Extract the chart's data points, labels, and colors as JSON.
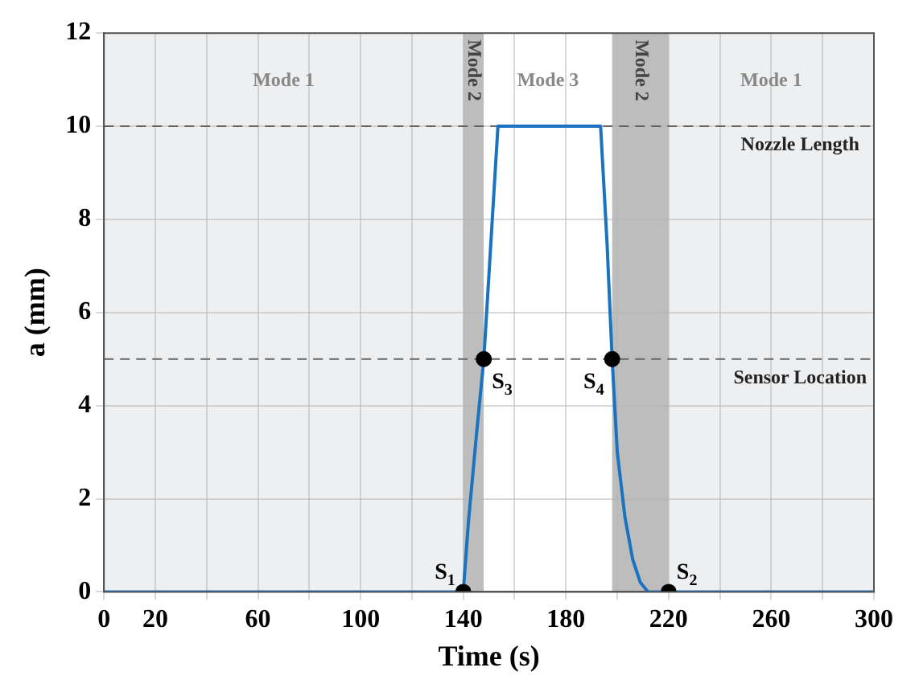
{
  "chart_data": {
    "type": "line",
    "xlabel": "Time (s)",
    "ylabel": "a (mm)",
    "xlim": [
      0,
      300
    ],
    "xticks": [
      0,
      20,
      {
        "value": 40,
        "label": null
      },
      60,
      {
        "value": 80,
        "label": null
      },
      100,
      {
        "value": 120,
        "label": null
      },
      140,
      {
        "value": 160,
        "label": null
      },
      180,
      {
        "value": 200,
        "label": null
      },
      220,
      {
        "value": 240,
        "label": null
      },
      260,
      {
        "value": 280,
        "label": null
      },
      300
    ],
    "ylim": [
      0,
      12
    ],
    "yticks": [
      0,
      2,
      4,
      6,
      8,
      10,
      12
    ],
    "grid": true,
    "legend": false,
    "series": [
      {
        "color": "#1a72c0",
        "marker": "none",
        "line_style": "solid",
        "x": [
          0,
          140,
          142,
          145,
          148,
          153.5,
          193.5,
          196,
          198,
          200,
          203,
          206,
          209,
          212,
          300
        ],
        "values": [
          0,
          0,
          1.5,
          3.3,
          5,
          10,
          10,
          7.5,
          5,
          3,
          1.6,
          0.7,
          0.2,
          0,
          0
        ]
      },
      {
        "type": "scatter",
        "color": "#000000",
        "marker": "circle",
        "x": [
          140,
          148,
          198,
          220
        ],
        "values": [
          0,
          5,
          5,
          0
        ]
      }
    ],
    "bands": [
      {
        "axis": "x",
        "from": 0,
        "to": 140,
        "label": "Mode 1",
        "color": "#eeeff1"
      },
      {
        "axis": "x",
        "from": 140,
        "to": 148,
        "label": "Mode 2",
        "color": "#bdbdbd"
      },
      {
        "axis": "x",
        "from": 148,
        "to": 198,
        "label": "Mode 3",
        "color": "#ffffff"
      },
      {
        "axis": "x",
        "from": 198,
        "to": 220,
        "label": "Mode 2",
        "color": "#bdbdbd"
      },
      {
        "axis": "x",
        "from": 220,
        "to": 300,
        "label": "Mode 1",
        "color": "#eeeff1"
      }
    ],
    "ref_lines": [
      {
        "axis": "y",
        "value": 10,
        "label": "Nozzle Length",
        "color": "#666666",
        "line_style": "dashed"
      },
      {
        "axis": "y",
        "value": 5,
        "label": "Sensor Location",
        "color": "#666666",
        "line_style": "dashed"
      }
    ],
    "annotations": [
      {
        "text": "S$_{1}$",
        "x": 140,
        "y": 0
      },
      {
        "text": "S$_{3}$",
        "x": 148,
        "y": 5
      },
      {
        "text": "S$_{4}$",
        "x": 198,
        "y": 5
      },
      {
        "text": "S$_{2}$",
        "x": 220,
        "y": 0
      }
    ]
  }
}
